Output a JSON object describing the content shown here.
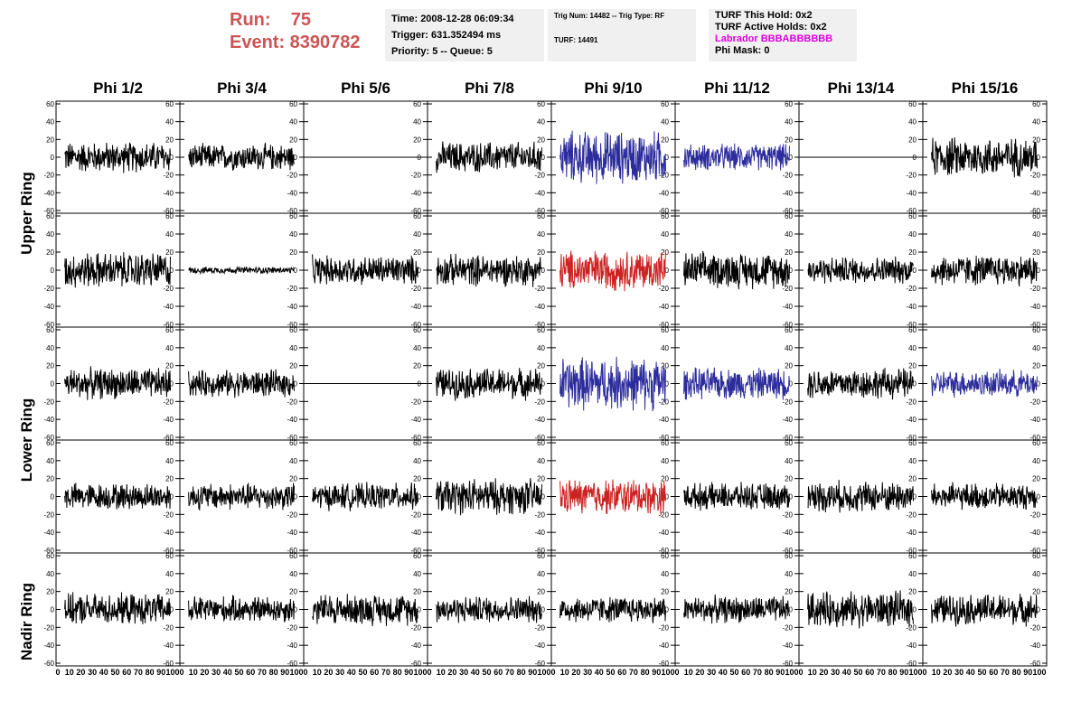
{
  "header": {
    "run_label": "Run:    75",
    "event_label": "Event: 8390782"
  },
  "info_time": {
    "line1": "Time: 2008-12-28 06:09:34",
    "line2": "Trigger: 631.352494 ms",
    "line3": "Priority: 5 -- Queue: 5"
  },
  "info_trig": {
    "line1": "Trig Num: 14482 -- Trig Type: RF",
    "line2": "TURF: 14491"
  },
  "info_turf": {
    "line1": "TURF This Hold: 0x2",
    "line2": "TURF Active Holds: 0x2",
    "line3": "Labrador BBBABBBBBB",
    "line4": "Phi Mask: 0"
  },
  "columns": [
    "Phi 1/2",
    "Phi 3/4",
    "Phi 5/6",
    "Phi 7/8",
    "Phi 9/10",
    "Phi 11/12",
    "Phi 13/14",
    "Phi 15/16"
  ],
  "rows": [
    "Upper Ring",
    "Lower Ring",
    "Nadir Ring"
  ],
  "y_axis_ticks": [
    "60",
    "40",
    "20",
    "0",
    "-20",
    "-40",
    "-60"
  ],
  "x_axis_ticks": [
    "0",
    "10",
    "20",
    "30",
    "40",
    "50",
    "60",
    "70",
    "80",
    "90",
    "100"
  ],
  "colors": {
    "black": "#000000",
    "blue": "#2c2c9c",
    "red": "#cc2222",
    "run": "#cc5555",
    "labrador": "#e000e0"
  },
  "chart_data": {
    "type": "line",
    "title": "",
    "x_range": [
      0,
      100
    ],
    "y_range": [
      -60,
      60
    ],
    "panel_grid": [
      [
        "black",
        "black",
        "flat",
        "black",
        "blue",
        "blue",
        "flat",
        "black"
      ],
      [
        "black",
        "black-small",
        "black",
        "black",
        "red",
        "black",
        "black",
        "black"
      ],
      [
        "black",
        "black",
        "flat",
        "black",
        "blue",
        "blue",
        "black",
        "blue"
      ],
      [
        "black",
        "black",
        "black",
        "black",
        "red",
        "black",
        "black",
        "black"
      ],
      [
        "black",
        "black",
        "black",
        "black",
        "black",
        "black",
        "black",
        "black"
      ]
    ],
    "panel_amplitude": [
      [
        14,
        12,
        0,
        14,
        24,
        12,
        0,
        18
      ],
      [
        16,
        3,
        13,
        14,
        18,
        16,
        12,
        14
      ],
      [
        14,
        12,
        0,
        14,
        24,
        14,
        14,
        12
      ],
      [
        12,
        12,
        12,
        16,
        16,
        12,
        14,
        12
      ],
      [
        14,
        12,
        14,
        12,
        12,
        12,
        16,
        14
      ]
    ]
  }
}
